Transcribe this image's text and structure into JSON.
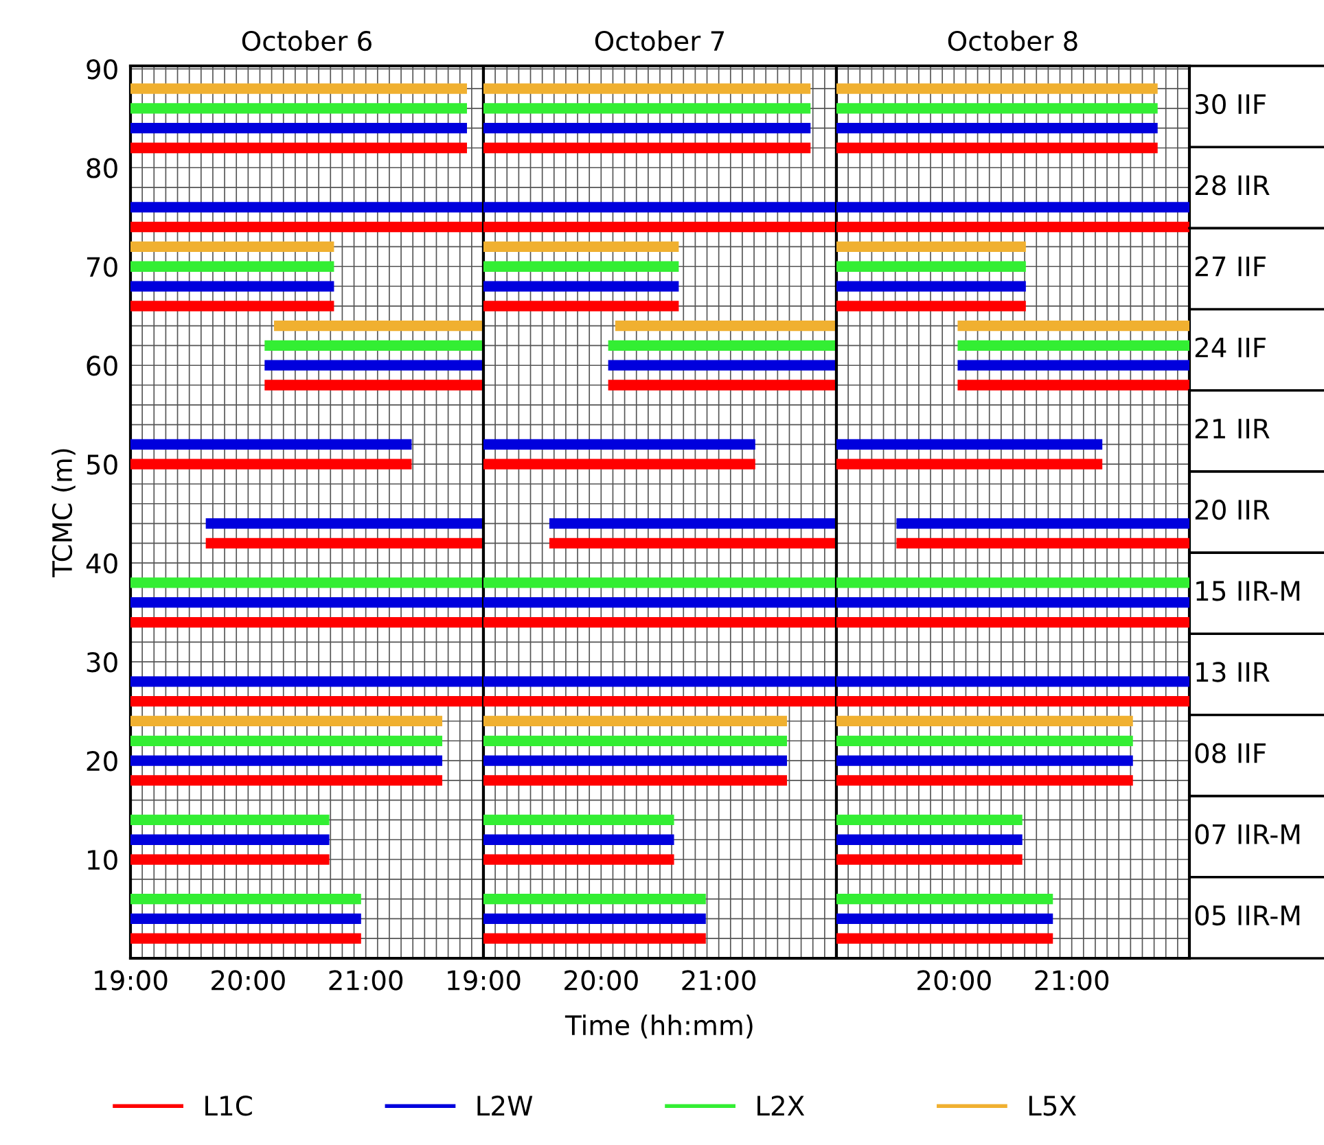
{
  "chart_data": [
    {
      "type": "line",
      "title": "October 6",
      "ylabel": "TCMC (m)",
      "legend": "bottom",
      "grid": true,
      "xlim": [
        19,
        22
      ],
      "ylim": [
        0,
        90.3
      ],
      "xticks": [
        {
          "value": 19,
          "label": "19:00"
        },
        {
          "value": 19.1,
          "label": null
        },
        {
          "value": 19.2,
          "label": null
        },
        {
          "value": 19.3,
          "label": null
        },
        {
          "value": 19.4,
          "label": null
        },
        {
          "value": 19.5,
          "label": null
        },
        {
          "value": 19.6,
          "label": null
        },
        {
          "value": 19.7,
          "label": null
        },
        {
          "value": 19.8,
          "label": null
        },
        {
          "value": 19.9,
          "label": null
        },
        {
          "value": 20,
          "label": "20:00"
        },
        {
          "value": 20.1,
          "label": null
        },
        {
          "value": 20.2,
          "label": null
        },
        {
          "value": 20.3,
          "label": null
        },
        {
          "value": 20.4,
          "label": null
        },
        {
          "value": 20.5,
          "label": null
        },
        {
          "value": 20.6,
          "label": null
        },
        {
          "value": 20.7,
          "label": null
        },
        {
          "value": 20.8,
          "label": null
        },
        {
          "value": 20.9,
          "label": null
        },
        {
          "value": 21,
          "label": "21:00"
        },
        {
          "value": 21.1,
          "label": null
        },
        {
          "value": 21.2,
          "label": null
        },
        {
          "value": 21.3,
          "label": null
        },
        {
          "value": 21.4,
          "label": null
        },
        {
          "value": 21.5,
          "label": null
        },
        {
          "value": 21.6,
          "label": null
        },
        {
          "value": 21.7,
          "label": null
        },
        {
          "value": 21.8,
          "label": null
        },
        {
          "value": 21.9,
          "label": null
        },
        {
          "value": 22,
          "label": null
        }
      ],
      "yticks": [
        {
          "value": 2,
          "label": null
        },
        {
          "value": 4,
          "label": null
        },
        {
          "value": 6,
          "label": null
        },
        {
          "value": 8,
          "label": null
        },
        10,
        {
          "value": 12,
          "label": null
        },
        {
          "value": 14,
          "label": null
        },
        {
          "value": 16,
          "label": null
        },
        {
          "value": 18,
          "label": null
        },
        20,
        {
          "value": 22,
          "label": null
        },
        {
          "value": 24,
          "label": null
        },
        {
          "value": 26,
          "label": null
        },
        {
          "value": 28,
          "label": null
        },
        30,
        {
          "value": 32,
          "label": null
        },
        {
          "value": 34,
          "label": null
        },
        {
          "value": 36,
          "label": null
        },
        {
          "value": 38,
          "label": null
        },
        40,
        {
          "value": 42,
          "label": null
        },
        {
          "value": 44,
          "label": null
        },
        {
          "value": 46,
          "label": null
        },
        {
          "value": 48,
          "label": null
        },
        50,
        {
          "value": 52,
          "label": null
        },
        {
          "value": 54,
          "label": null
        },
        {
          "value": 56,
          "label": null
        },
        {
          "value": 58,
          "label": null
        },
        60,
        {
          "value": 62,
          "label": null
        },
        {
          "value": 64,
          "label": null
        },
        {
          "value": 66,
          "label": null
        },
        {
          "value": 68,
          "label": null
        },
        70,
        {
          "value": 72,
          "label": null
        },
        {
          "value": 74,
          "label": null
        },
        {
          "value": 76,
          "label": null
        },
        {
          "value": 78,
          "label": null
        },
        80,
        {
          "value": 82,
          "label": null
        },
        {
          "value": 84,
          "label": null
        },
        {
          "value": 86,
          "label": null
        },
        {
          "value": 88,
          "label": null
        },
        90
      ],
      "series": [
        {
          "name": "L1C",
          "color": "#ff0000",
          "x": [
            19,
            21.86
          ],
          "values": [
            82,
            82
          ]
        },
        {
          "name": "L2W",
          "color": "#0000dd",
          "x": [
            19,
            21.86
          ],
          "values": [
            84,
            84
          ]
        },
        {
          "name": "L2X",
          "color": "#33ee33",
          "x": [
            19,
            21.86
          ],
          "values": [
            86,
            86
          ]
        },
        {
          "name": "L5X",
          "color": "#f0b030",
          "x": [
            19,
            21.86
          ],
          "values": [
            88,
            88
          ]
        },
        {
          "color": "#ff0000",
          "x": [
            19,
            22
          ],
          "values": [
            74,
            74
          ]
        },
        {
          "color": "#0000dd",
          "x": [
            19,
            22
          ],
          "values": [
            76,
            76
          ]
        },
        {
          "color": "#ff0000",
          "x": [
            19,
            20.73
          ],
          "values": [
            66,
            66
          ]
        },
        {
          "color": "#0000dd",
          "x": [
            19,
            20.73
          ],
          "values": [
            68,
            68
          ]
        },
        {
          "color": "#33ee33",
          "x": [
            19,
            20.73
          ],
          "values": [
            70,
            70
          ]
        },
        {
          "color": "#f0b030",
          "x": [
            19,
            20.73
          ],
          "values": [
            72,
            72
          ]
        },
        {
          "color": "#ff0000",
          "x": [
            20.14,
            22
          ],
          "values": [
            58,
            58
          ]
        },
        {
          "color": "#0000dd",
          "x": [
            20.14,
            22
          ],
          "values": [
            60,
            60
          ]
        },
        {
          "color": "#33ee33",
          "x": [
            20.14,
            22
          ],
          "values": [
            62,
            62
          ]
        },
        {
          "color": "#f0b030",
          "x": [
            20.22,
            22
          ],
          "values": [
            64,
            64
          ]
        },
        {
          "color": "#ff0000",
          "x": [
            19,
            21.39
          ],
          "values": [
            50,
            50
          ]
        },
        {
          "color": "#0000dd",
          "x": [
            19,
            21.39
          ],
          "values": [
            52,
            52
          ]
        },
        {
          "color": "#ff0000",
          "x": [
            19.64,
            22
          ],
          "values": [
            42,
            42
          ]
        },
        {
          "color": "#0000dd",
          "x": [
            19.64,
            22
          ],
          "values": [
            44,
            44
          ]
        },
        {
          "color": "#ff0000",
          "x": [
            19,
            22
          ],
          "values": [
            34,
            34
          ]
        },
        {
          "color": "#0000dd",
          "x": [
            19,
            22
          ],
          "values": [
            36,
            36
          ]
        },
        {
          "color": "#33ee33",
          "x": [
            19,
            22
          ],
          "values": [
            38,
            38
          ]
        },
        {
          "color": "#ff0000",
          "x": [
            19,
            22
          ],
          "values": [
            26,
            26
          ]
        },
        {
          "color": "#0000dd",
          "x": [
            19,
            22
          ],
          "values": [
            28,
            28
          ]
        },
        {
          "color": "#ff0000",
          "x": [
            19,
            21.65
          ],
          "values": [
            18,
            18
          ]
        },
        {
          "color": "#0000dd",
          "x": [
            19,
            21.65
          ],
          "values": [
            20,
            20
          ]
        },
        {
          "color": "#33ee33",
          "x": [
            19,
            21.65
          ],
          "values": [
            22,
            22
          ]
        },
        {
          "color": "#f0b030",
          "x": [
            19,
            21.65
          ],
          "values": [
            24,
            24
          ]
        },
        {
          "color": "#ff0000",
          "x": [
            19,
            20.69
          ],
          "values": [
            10,
            10
          ]
        },
        {
          "color": "#0000dd",
          "x": [
            19,
            20.69
          ],
          "values": [
            12,
            12
          ]
        },
        {
          "color": "#33ee33",
          "x": [
            19,
            20.69
          ],
          "values": [
            14,
            14
          ]
        },
        {
          "color": "#ff0000",
          "x": [
            19,
            20.96
          ],
          "values": [
            2,
            2
          ]
        },
        {
          "color": "#0000dd",
          "x": [
            19,
            20.96
          ],
          "values": [
            4,
            4
          ]
        },
        {
          "color": "#33ee33",
          "x": [
            19,
            20.96
          ],
          "values": [
            6,
            6
          ]
        }
      ]
    },
    {
      "type": "line",
      "title": "October 7",
      "xlabel": "Time (hh:mm)",
      "tick_labels": "x",
      "grid": true,
      "xlim": [
        19,
        22
      ],
      "ylim": [
        0,
        90.3
      ],
      "xticks": [
        {
          "value": 19,
          "label": "19:00"
        },
        {
          "value": 19.1,
          "label": null
        },
        {
          "value": 19.2,
          "label": null
        },
        {
          "value": 19.3,
          "label": null
        },
        {
          "value": 19.4,
          "label": null
        },
        {
          "value": 19.5,
          "label": null
        },
        {
          "value": 19.6,
          "label": null
        },
        {
          "value": 19.7,
          "label": null
        },
        {
          "value": 19.8,
          "label": null
        },
        {
          "value": 19.9,
          "label": null
        },
        {
          "value": 20,
          "label": "20:00"
        },
        {
          "value": 20.1,
          "label": null
        },
        {
          "value": 20.2,
          "label": null
        },
        {
          "value": 20.3,
          "label": null
        },
        {
          "value": 20.4,
          "label": null
        },
        {
          "value": 20.5,
          "label": null
        },
        {
          "value": 20.6,
          "label": null
        },
        {
          "value": 20.7,
          "label": null
        },
        {
          "value": 20.8,
          "label": null
        },
        {
          "value": 20.9,
          "label": null
        },
        {
          "value": 21,
          "label": "21:00"
        },
        {
          "value": 21.1,
          "label": null
        },
        {
          "value": 21.2,
          "label": null
        },
        {
          "value": 21.3,
          "label": null
        },
        {
          "value": 21.4,
          "label": null
        },
        {
          "value": 21.5,
          "label": null
        },
        {
          "value": 21.6,
          "label": null
        },
        {
          "value": 21.7,
          "label": null
        },
        {
          "value": 21.8,
          "label": null
        },
        {
          "value": 21.9,
          "label": null
        },
        {
          "value": 22,
          "label": null
        }
      ],
      "yticks": [
        {
          "value": 2,
          "label": null
        },
        {
          "value": 4,
          "label": null
        },
        {
          "value": 6,
          "label": null
        },
        {
          "value": 8,
          "label": null
        },
        10,
        {
          "value": 12,
          "label": null
        },
        {
          "value": 14,
          "label": null
        },
        {
          "value": 16,
          "label": null
        },
        {
          "value": 18,
          "label": null
        },
        20,
        {
          "value": 22,
          "label": null
        },
        {
          "value": 24,
          "label": null
        },
        {
          "value": 26,
          "label": null
        },
        {
          "value": 28,
          "label": null
        },
        30,
        {
          "value": 32,
          "label": null
        },
        {
          "value": 34,
          "label": null
        },
        {
          "value": 36,
          "label": null
        },
        {
          "value": 38,
          "label": null
        },
        40,
        {
          "value": 42,
          "label": null
        },
        {
          "value": 44,
          "label": null
        },
        {
          "value": 46,
          "label": null
        },
        {
          "value": 48,
          "label": null
        },
        50,
        {
          "value": 52,
          "label": null
        },
        {
          "value": 54,
          "label": null
        },
        {
          "value": 56,
          "label": null
        },
        {
          "value": 58,
          "label": null
        },
        60,
        {
          "value": 62,
          "label": null
        },
        {
          "value": 64,
          "label": null
        },
        {
          "value": 66,
          "label": null
        },
        {
          "value": 68,
          "label": null
        },
        70,
        {
          "value": 72,
          "label": null
        },
        {
          "value": 74,
          "label": null
        },
        {
          "value": 76,
          "label": null
        },
        {
          "value": 78,
          "label": null
        },
        80,
        {
          "value": 82,
          "label": null
        },
        {
          "value": 84,
          "label": null
        },
        {
          "value": 86,
          "label": null
        },
        {
          "value": 88,
          "label": null
        },
        90
      ],
      "series": [
        {
          "color": "#ff0000",
          "x": [
            19,
            21.78
          ],
          "values": [
            82,
            82
          ]
        },
        {
          "color": "#0000dd",
          "x": [
            19,
            21.78
          ],
          "values": [
            84,
            84
          ]
        },
        {
          "color": "#33ee33",
          "x": [
            19,
            21.78
          ],
          "values": [
            86,
            86
          ]
        },
        {
          "color": "#f0b030",
          "x": [
            19,
            21.78
          ],
          "values": [
            88,
            88
          ]
        },
        {
          "color": "#ff0000",
          "x": [
            19,
            22
          ],
          "values": [
            74,
            74
          ]
        },
        {
          "color": "#0000dd",
          "x": [
            19,
            22
          ],
          "values": [
            76,
            76
          ]
        },
        {
          "color": "#ff0000",
          "x": [
            19,
            20.66
          ],
          "values": [
            66,
            66
          ]
        },
        {
          "color": "#0000dd",
          "x": [
            19,
            20.66
          ],
          "values": [
            68,
            68
          ]
        },
        {
          "color": "#33ee33",
          "x": [
            19,
            20.66
          ],
          "values": [
            70,
            70
          ]
        },
        {
          "color": "#f0b030",
          "x": [
            19,
            20.66
          ],
          "values": [
            72,
            72
          ]
        },
        {
          "color": "#ff0000",
          "x": [
            20.06,
            22
          ],
          "values": [
            58,
            58
          ]
        },
        {
          "color": "#0000dd",
          "x": [
            20.06,
            22
          ],
          "values": [
            60,
            60
          ]
        },
        {
          "color": "#33ee33",
          "x": [
            20.06,
            22
          ],
          "values": [
            62,
            62
          ]
        },
        {
          "color": "#f0b030",
          "x": [
            20.12,
            22
          ],
          "values": [
            64,
            64
          ]
        },
        {
          "color": "#ff0000",
          "x": [
            19,
            21.31
          ],
          "values": [
            50,
            50
          ]
        },
        {
          "color": "#0000dd",
          "x": [
            19,
            21.31
          ],
          "values": [
            52,
            52
          ]
        },
        {
          "color": "#ff0000",
          "x": [
            19.56,
            22
          ],
          "values": [
            42,
            42
          ]
        },
        {
          "color": "#0000dd",
          "x": [
            19.56,
            22
          ],
          "values": [
            44,
            44
          ]
        },
        {
          "color": "#ff0000",
          "x": [
            19,
            22
          ],
          "values": [
            34,
            34
          ]
        },
        {
          "color": "#0000dd",
          "x": [
            19,
            22
          ],
          "values": [
            36,
            36
          ]
        },
        {
          "color": "#33ee33",
          "x": [
            19,
            22
          ],
          "values": [
            38,
            38
          ]
        },
        {
          "color": "#ff0000",
          "x": [
            19,
            22
          ],
          "values": [
            26,
            26
          ]
        },
        {
          "color": "#0000dd",
          "x": [
            19,
            22
          ],
          "values": [
            28,
            28
          ]
        },
        {
          "color": "#ff0000",
          "x": [
            19,
            21.58
          ],
          "values": [
            18,
            18
          ]
        },
        {
          "color": "#0000dd",
          "x": [
            19,
            21.58
          ],
          "values": [
            20,
            20
          ]
        },
        {
          "color": "#33ee33",
          "x": [
            19,
            21.58
          ],
          "values": [
            22,
            22
          ]
        },
        {
          "color": "#f0b030",
          "x": [
            19,
            21.58
          ],
          "values": [
            24,
            24
          ]
        },
        {
          "color": "#ff0000",
          "x": [
            19,
            20.62
          ],
          "values": [
            10,
            10
          ]
        },
        {
          "color": "#0000dd",
          "x": [
            19,
            20.62
          ],
          "values": [
            12,
            12
          ]
        },
        {
          "color": "#33ee33",
          "x": [
            19,
            20.62
          ],
          "values": [
            14,
            14
          ]
        },
        {
          "color": "#ff0000",
          "x": [
            19,
            20.89
          ],
          "values": [
            2,
            2
          ]
        },
        {
          "color": "#0000dd",
          "x": [
            19,
            20.89
          ],
          "values": [
            4,
            4
          ]
        },
        {
          "color": "#33ee33",
          "x": [
            19,
            20.89
          ],
          "values": [
            6,
            6
          ]
        }
      ]
    },
    {
      "type": "line",
      "title": "October 8",
      "tick_labels": "x",
      "grid": true,
      "xlim": [
        19,
        22
      ],
      "ylim": [
        0,
        90.3
      ],
      "annotations": [
        "30 IIF",
        "28 IIR",
        "27 IIF",
        "24 IIF",
        "21 IIR",
        "20 IIR",
        "15 IIR-M",
        "13 IIR",
        "08 IIF",
        "07 IIR-M",
        "05 IIR-M"
      ],
      "xticks": [
        {
          "value": 19,
          "label": null
        },
        {
          "value": 19.1,
          "label": null
        },
        {
          "value": 19.2,
          "label": null
        },
        {
          "value": 19.3,
          "label": null
        },
        {
          "value": 19.4,
          "label": null
        },
        {
          "value": 19.5,
          "label": null
        },
        {
          "value": 19.6,
          "label": null
        },
        {
          "value": 19.7,
          "label": null
        },
        {
          "value": 19.8,
          "label": null
        },
        {
          "value": 19.9,
          "label": null
        },
        {
          "value": 20,
          "label": "20:00"
        },
        {
          "value": 20.1,
          "label": null
        },
        {
          "value": 20.2,
          "label": null
        },
        {
          "value": 20.3,
          "label": null
        },
        {
          "value": 20.4,
          "label": null
        },
        {
          "value": 20.5,
          "label": null
        },
        {
          "value": 20.6,
          "label": null
        },
        {
          "value": 20.7,
          "label": null
        },
        {
          "value": 20.8,
          "label": null
        },
        {
          "value": 20.9,
          "label": null
        },
        {
          "value": 21,
          "label": "21:00"
        },
        {
          "value": 21.1,
          "label": null
        },
        {
          "value": 21.2,
          "label": null
        },
        {
          "value": 21.3,
          "label": null
        },
        {
          "value": 21.4,
          "label": null
        },
        {
          "value": 21.5,
          "label": null
        },
        {
          "value": 21.6,
          "label": null
        },
        {
          "value": 21.7,
          "label": null
        },
        {
          "value": 21.8,
          "label": null
        },
        {
          "value": 21.9,
          "label": null
        },
        {
          "value": 22,
          "label": null
        }
      ],
      "yticks": [
        {
          "value": 2,
          "label": null
        },
        {
          "value": 4,
          "label": null
        },
        {
          "value": 6,
          "label": null
        },
        {
          "value": 8,
          "label": null
        },
        10,
        {
          "value": 12,
          "label": null
        },
        {
          "value": 14,
          "label": null
        },
        {
          "value": 16,
          "label": null
        },
        {
          "value": 18,
          "label": null
        },
        20,
        {
          "value": 22,
          "label": null
        },
        {
          "value": 24,
          "label": null
        },
        {
          "value": 26,
          "label": null
        },
        {
          "value": 28,
          "label": null
        },
        30,
        {
          "value": 32,
          "label": null
        },
        {
          "value": 34,
          "label": null
        },
        {
          "value": 36,
          "label": null
        },
        {
          "value": 38,
          "label": null
        },
        40,
        {
          "value": 42,
          "label": null
        },
        {
          "value": 44,
          "label": null
        },
        {
          "value": 46,
          "label": null
        },
        {
          "value": 48,
          "label": null
        },
        50,
        {
          "value": 52,
          "label": null
        },
        {
          "value": 54,
          "label": null
        },
        {
          "value": 56,
          "label": null
        },
        {
          "value": 58,
          "label": null
        },
        60,
        {
          "value": 62,
          "label": null
        },
        {
          "value": 64,
          "label": null
        },
        {
          "value": 66,
          "label": null
        },
        {
          "value": 68,
          "label": null
        },
        70,
        {
          "value": 72,
          "label": null
        },
        {
          "value": 74,
          "label": null
        },
        {
          "value": 76,
          "label": null
        },
        {
          "value": 78,
          "label": null
        },
        80,
        {
          "value": 82,
          "label": null
        },
        {
          "value": 84,
          "label": null
        },
        {
          "value": 86,
          "label": null
        },
        {
          "value": 88,
          "label": null
        },
        90
      ],
      "series": [
        {
          "color": "#ff0000",
          "x": [
            19,
            21.73
          ],
          "values": [
            82,
            82
          ]
        },
        {
          "color": "#0000dd",
          "x": [
            19,
            21.73
          ],
          "values": [
            84,
            84
          ]
        },
        {
          "color": "#33ee33",
          "x": [
            19,
            21.73
          ],
          "values": [
            86,
            86
          ]
        },
        {
          "color": "#f0b030",
          "x": [
            19,
            21.73
          ],
          "values": [
            88,
            88
          ]
        },
        {
          "color": "#ff0000",
          "x": [
            19,
            22
          ],
          "values": [
            74,
            74
          ]
        },
        {
          "color": "#0000dd",
          "x": [
            19,
            22
          ],
          "values": [
            76,
            76
          ]
        },
        {
          "color": "#ff0000",
          "x": [
            19,
            20.61
          ],
          "values": [
            66,
            66
          ]
        },
        {
          "color": "#0000dd",
          "x": [
            19,
            20.61
          ],
          "values": [
            68,
            68
          ]
        },
        {
          "color": "#33ee33",
          "x": [
            19,
            20.61
          ],
          "values": [
            70,
            70
          ]
        },
        {
          "color": "#f0b030",
          "x": [
            19,
            20.61
          ],
          "values": [
            72,
            72
          ]
        },
        {
          "color": "#ff0000",
          "x": [
            20.03,
            22
          ],
          "values": [
            58,
            58
          ]
        },
        {
          "color": "#0000dd",
          "x": [
            20.03,
            22
          ],
          "values": [
            60,
            60
          ]
        },
        {
          "color": "#33ee33",
          "x": [
            20.03,
            22
          ],
          "values": [
            62,
            62
          ]
        },
        {
          "color": "#f0b030",
          "x": [
            20.03,
            22
          ],
          "values": [
            64,
            64
          ]
        },
        {
          "color": "#ff0000",
          "x": [
            19,
            21.26
          ],
          "values": [
            50,
            50
          ]
        },
        {
          "color": "#0000dd",
          "x": [
            19,
            21.26
          ],
          "values": [
            52,
            52
          ]
        },
        {
          "color": "#ff0000",
          "x": [
            19.51,
            22
          ],
          "values": [
            42,
            42
          ]
        },
        {
          "color": "#0000dd",
          "x": [
            19.51,
            22
          ],
          "values": [
            44,
            44
          ]
        },
        {
          "color": "#ff0000",
          "x": [
            19,
            22
          ],
          "values": [
            34,
            34
          ]
        },
        {
          "color": "#0000dd",
          "x": [
            19,
            22
          ],
          "values": [
            36,
            36
          ]
        },
        {
          "color": "#33ee33",
          "x": [
            19,
            22
          ],
          "values": [
            38,
            38
          ]
        },
        {
          "color": "#ff0000",
          "x": [
            19,
            22
          ],
          "values": [
            26,
            26
          ]
        },
        {
          "color": "#0000dd",
          "x": [
            19,
            22
          ],
          "values": [
            28,
            28
          ]
        },
        {
          "color": "#ff0000",
          "x": [
            19,
            21.52
          ],
          "values": [
            18,
            18
          ]
        },
        {
          "color": "#0000dd",
          "x": [
            19,
            21.52
          ],
          "values": [
            20,
            20
          ]
        },
        {
          "color": "#33ee33",
          "x": [
            19,
            21.52
          ],
          "values": [
            22,
            22
          ]
        },
        {
          "color": "#f0b030",
          "x": [
            19,
            21.52
          ],
          "values": [
            24,
            24
          ]
        },
        {
          "color": "#ff0000",
          "x": [
            19,
            20.58
          ],
          "values": [
            10,
            10
          ]
        },
        {
          "color": "#0000dd",
          "x": [
            19,
            20.58
          ],
          "values": [
            12,
            12
          ]
        },
        {
          "color": "#33ee33",
          "x": [
            19,
            20.58
          ],
          "values": [
            14,
            14
          ]
        },
        {
          "color": "#ff0000",
          "x": [
            19,
            20.84
          ],
          "values": [
            2,
            2
          ]
        },
        {
          "color": "#0000dd",
          "x": [
            19,
            20.84
          ],
          "values": [
            4,
            4
          ]
        },
        {
          "color": "#33ee33",
          "x": [
            19,
            20.84
          ],
          "values": [
            6,
            6
          ]
        }
      ]
    }
  ]
}
